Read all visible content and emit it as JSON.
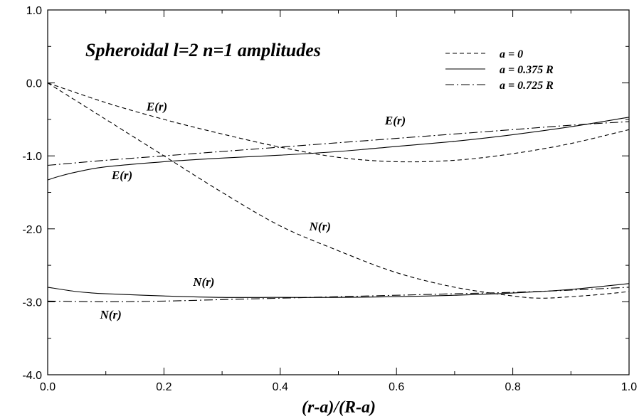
{
  "chart_data": {
    "type": "line",
    "title": "Spheroidal l=2 n=1 amplitudes",
    "xlabel": "(r-a)/(R-a)",
    "ylabel": "",
    "xlim": [
      0.0,
      1.0
    ],
    "ylim": [
      -4.0,
      1.0
    ],
    "grid": false,
    "legend_position": "top-right",
    "x_ticks": [
      "0.0",
      "0.2",
      "0.4",
      "0.6",
      "0.8",
      "1.0"
    ],
    "y_ticks": [
      "1.0",
      "0.0",
      "-1.0",
      "-2.0",
      "-3.0",
      "-4.0"
    ],
    "legend": [
      {
        "label": "a = 0",
        "style": "dashed"
      },
      {
        "label": "a = 0.375 R",
        "style": "solid"
      },
      {
        "label": "a = 0.725 R",
        "style": "dashdot"
      }
    ],
    "series": [
      {
        "style": "dashed",
        "x": [
          0.0,
          0.1,
          0.2,
          0.3,
          0.4,
          0.5,
          0.6,
          0.7,
          0.8,
          0.9,
          1.0
        ],
        "y": [
          0.0,
          -0.27,
          -0.5,
          -0.7,
          -0.88,
          -1.02,
          -1.08,
          -1.06,
          -0.97,
          -0.83,
          -0.64
        ]
      },
      {
        "style": "dashed",
        "x": [
          0.0,
          0.1,
          0.2,
          0.3,
          0.4,
          0.5,
          0.6,
          0.7,
          0.8,
          0.85,
          0.9,
          0.95,
          1.0
        ],
        "y": [
          0.0,
          -0.5,
          -1.0,
          -1.5,
          -1.96,
          -2.3,
          -2.6,
          -2.8,
          -2.92,
          -2.95,
          -2.93,
          -2.9,
          -2.86
        ]
      },
      {
        "style": "solid",
        "x": [
          0.0,
          0.02,
          0.05,
          0.1,
          0.2,
          0.3,
          0.4,
          0.5,
          0.6,
          0.7,
          0.8,
          0.9,
          1.0
        ],
        "y": [
          -1.33,
          -1.28,
          -1.22,
          -1.15,
          -1.08,
          -1.03,
          -0.99,
          -0.94,
          -0.87,
          -0.8,
          -0.71,
          -0.6,
          -0.47
        ]
      },
      {
        "style": "solid",
        "x": [
          0.0,
          0.05,
          0.1,
          0.2,
          0.3,
          0.4,
          0.5,
          0.6,
          0.7,
          0.8,
          0.9,
          1.0
        ],
        "y": [
          -2.8,
          -2.86,
          -2.89,
          -2.92,
          -2.94,
          -2.94,
          -2.94,
          -2.93,
          -2.91,
          -2.88,
          -2.83,
          -2.75
        ]
      },
      {
        "style": "dashdot",
        "x": [
          0.0,
          0.1,
          0.2,
          0.3,
          0.4,
          0.5,
          0.6,
          0.7,
          0.8,
          0.9,
          1.0
        ],
        "y": [
          -1.13,
          -1.06,
          -1.0,
          -0.94,
          -0.88,
          -0.82,
          -0.76,
          -0.7,
          -0.64,
          -0.58,
          -0.53
        ]
      },
      {
        "style": "dashdot",
        "x": [
          0.0,
          0.1,
          0.2,
          0.3,
          0.4,
          0.5,
          0.6,
          0.7,
          0.8,
          0.9,
          1.0
        ],
        "y": [
          -2.99,
          -3.0,
          -2.99,
          -2.97,
          -2.95,
          -2.93,
          -2.91,
          -2.89,
          -2.87,
          -2.84,
          -2.8
        ]
      }
    ],
    "annotations": [
      {
        "text": "E(r)",
        "x": 0.17,
        "y": -0.38
      },
      {
        "text": "E(r)",
        "x": 0.58,
        "y": -0.57
      },
      {
        "text": "E(r)",
        "x": 0.11,
        "y": -1.32
      },
      {
        "text": "N(r)",
        "x": 0.45,
        "y": -2.02
      },
      {
        "text": "N(r)",
        "x": 0.25,
        "y": -2.78
      },
      {
        "text": "N(r)",
        "x": 0.09,
        "y": -3.23
      }
    ]
  }
}
